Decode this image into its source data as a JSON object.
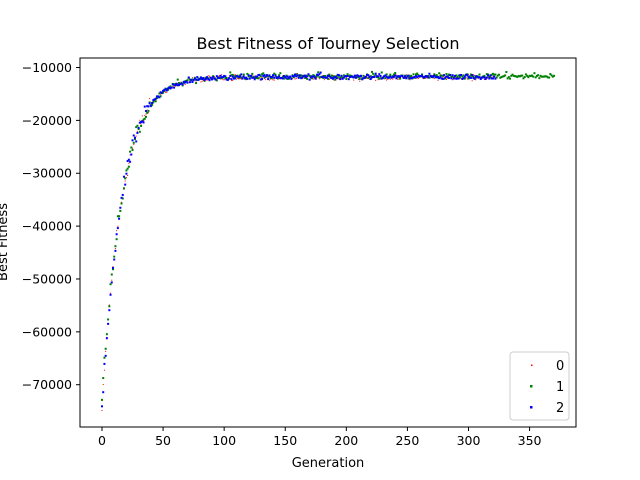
{
  "chart_data": {
    "type": "scatter",
    "title": "Best Fitness of Tourney Selection",
    "xlabel": "Generation",
    "ylabel": "Best Fitness",
    "xlim": [
      -18,
      388
    ],
    "ylim": [
      -78000,
      -8200
    ],
    "xticks": [
      0,
      50,
      100,
      150,
      200,
      250,
      300,
      350
    ],
    "yticks": [
      -70000,
      -60000,
      -50000,
      -40000,
      -30000,
      -20000,
      -10000
    ],
    "ytick_labels": [
      "−70000",
      "−60000",
      "−50000",
      "−40000",
      "−30000",
      "−20000",
      "−10000"
    ],
    "grid": false,
    "legend_placement": "lower-right",
    "series": [
      {
        "name": "0",
        "color": "#ff0000",
        "marker_size": 1,
        "curve": {
          "start": -75000,
          "plateau": -11900,
          "rate": 0.062,
          "noise": 350
        },
        "x_range": [
          0,
          320
        ]
      },
      {
        "name": "1",
        "color": "#008000",
        "marker_size": 2,
        "curve": {
          "start": -72500,
          "plateau": -11700,
          "rate": 0.06,
          "noise": 350
        },
        "x_range": [
          0,
          370
        ]
      },
      {
        "name": "2",
        "color": "#0000ff",
        "marker_size": 2,
        "curve": {
          "start": -75000,
          "plateau": -11800,
          "rate": 0.062,
          "noise": 350
        },
        "x_range": [
          0,
          322
        ]
      }
    ]
  }
}
